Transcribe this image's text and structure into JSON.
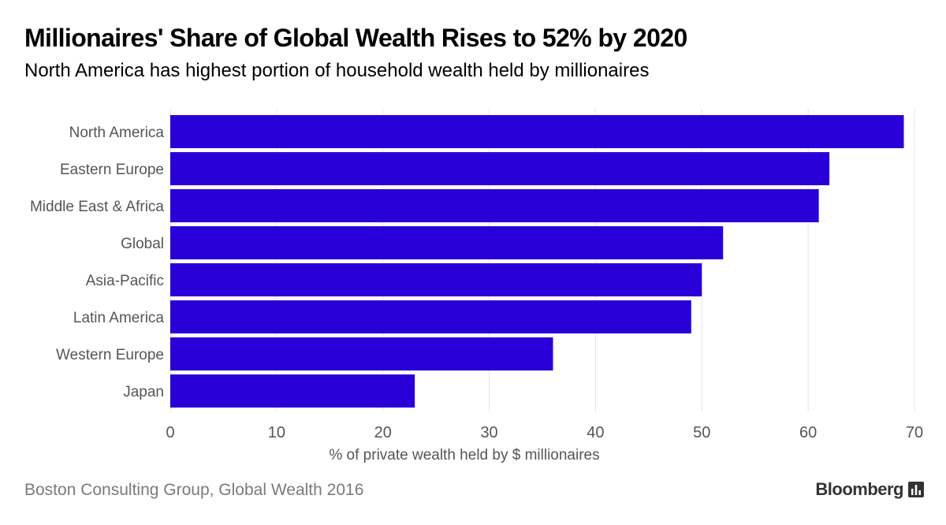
{
  "header": {
    "title": "Millionaires' Share of Global Wealth Rises to 52% by 2020",
    "subtitle": "North America has highest portion of household wealth held by millionaires"
  },
  "footer": {
    "source": "Boston Consulting Group, Global Wealth 2016",
    "brand": "Bloomberg",
    "brand_icon": "bar-chart-icon"
  },
  "colors": {
    "bar": "#2a00d8",
    "grid": "#e4e4e4",
    "tick_label": "#555555",
    "category_label": "#555555"
  },
  "chart_data": {
    "type": "bar",
    "orientation": "horizontal",
    "categories": [
      "North America",
      "Eastern Europe",
      "Middle East & Africa",
      "Global",
      "Asia-Pacific",
      "Latin America",
      "Western Europe",
      "Japan"
    ],
    "values": [
      69,
      62,
      61,
      52,
      50,
      49,
      36,
      23
    ],
    "title": "Millionaires' Share of Global Wealth Rises to 52% by 2020",
    "subtitle": "North America has highest portion of household wealth held by millionaires",
    "xlabel": "% of private wealth held by $ millionaires",
    "ylabel": "",
    "xlim": [
      0,
      70
    ],
    "xticks": [
      "0",
      "10",
      "20",
      "30",
      "40",
      "50",
      "60",
      "70"
    ],
    "grid": true,
    "legend": "none"
  }
}
